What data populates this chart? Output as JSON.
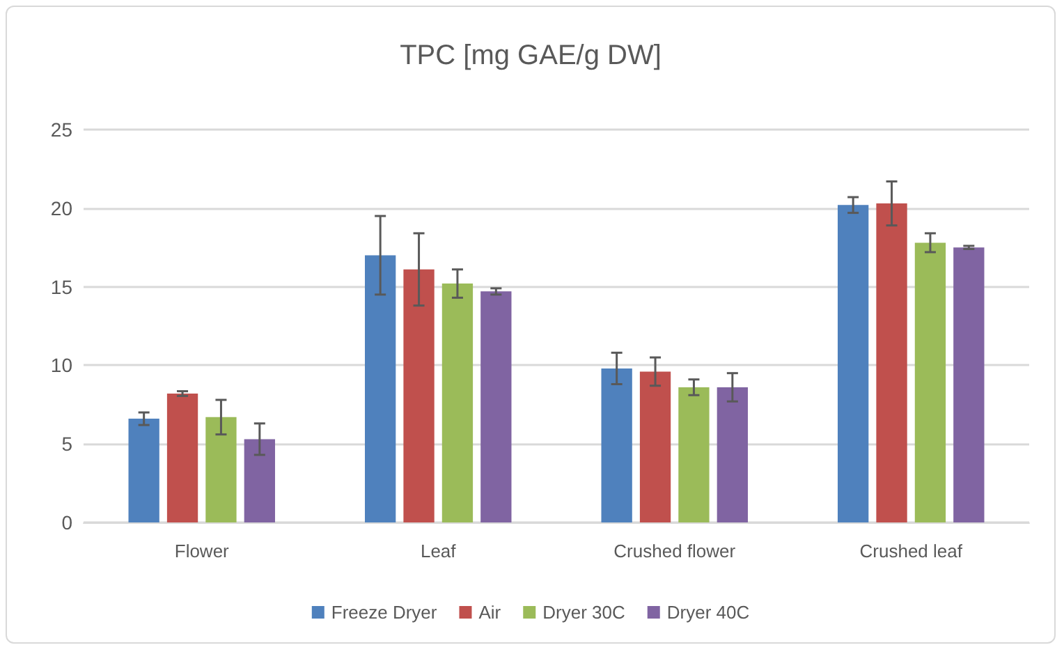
{
  "chart_data": {
    "type": "bar",
    "title": "TPC [mg GAE/g DW]",
    "categories": [
      "Flower",
      "Leaf",
      "Crushed flower",
      "Crushed leaf"
    ],
    "series": [
      {
        "name": "Freeze Dryer",
        "color": "#4f81bd",
        "values": [
          6.6,
          17.0,
          9.8,
          20.2
        ],
        "errors": [
          0.4,
          2.5,
          1.0,
          0.5
        ]
      },
      {
        "name": "Air",
        "color": "#c0504d",
        "values": [
          8.2,
          16.1,
          9.6,
          20.3
        ],
        "errors": [
          0.15,
          2.3,
          0.9,
          1.4
        ]
      },
      {
        "name": "Dryer 30C",
        "color": "#9bbb59",
        "values": [
          6.7,
          15.2,
          8.6,
          17.8
        ],
        "errors": [
          1.1,
          0.9,
          0.5,
          0.6
        ]
      },
      {
        "name": "Dryer 40C",
        "color": "#8064a2",
        "values": [
          5.3,
          14.7,
          8.6,
          17.5
        ],
        "errors": [
          1.0,
          0.2,
          0.9,
          0.1
        ]
      }
    ],
    "ylim": [
      0,
      25
    ],
    "yticks": [
      0,
      5,
      10,
      15,
      20,
      25
    ],
    "grid": "y",
    "legend": "bottom"
  }
}
